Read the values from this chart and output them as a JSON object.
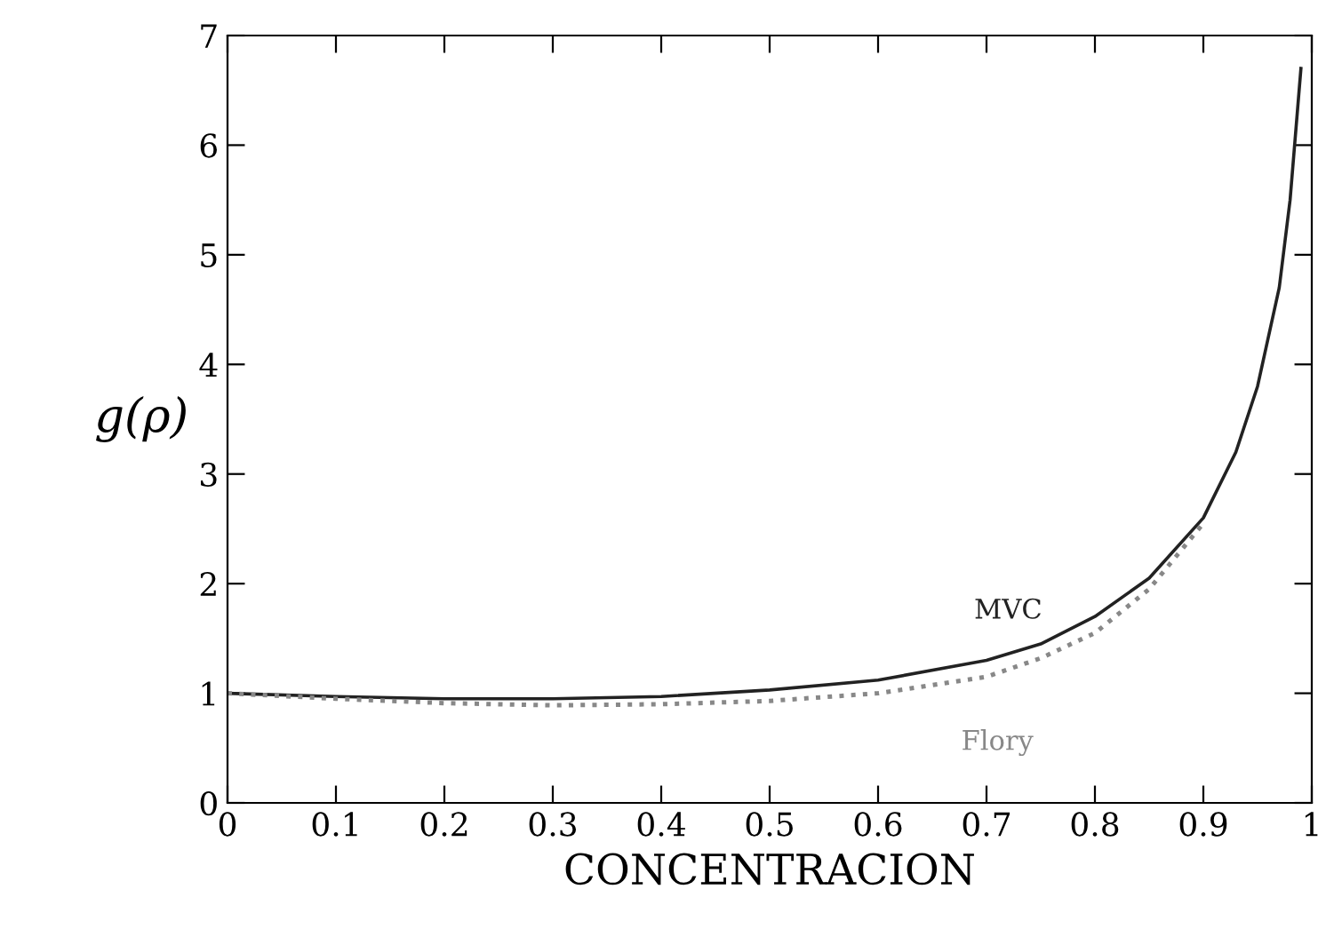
{
  "chart_data": {
    "type": "line",
    "xlabel": "CONCENTRACION",
    "ylabel": "g(ρ)",
    "xlim": [
      0,
      1
    ],
    "ylim": [
      0,
      7
    ],
    "xticks": [
      0,
      0.1,
      0.2,
      0.3,
      0.4,
      0.5,
      0.6,
      0.7,
      0.8,
      0.9,
      1
    ],
    "yticks": [
      0,
      1,
      2,
      3,
      4,
      5,
      6,
      7
    ],
    "grid": false,
    "legend": false,
    "marker": "none",
    "series": [
      {
        "name": "MVC",
        "color": "#222222",
        "line_style": "solid",
        "x": [
          0,
          0.1,
          0.2,
          0.3,
          0.4,
          0.5,
          0.6,
          0.7,
          0.75,
          0.8,
          0.85,
          0.9,
          0.93,
          0.95,
          0.97,
          0.98,
          0.99
        ],
        "values": [
          1.0,
          0.97,
          0.95,
          0.95,
          0.97,
          1.03,
          1.12,
          1.3,
          1.45,
          1.7,
          2.05,
          2.6,
          3.2,
          3.8,
          4.7,
          5.5,
          6.7
        ]
      },
      {
        "name": "Flory",
        "color": "#888888",
        "line_style": "dotted",
        "x": [
          0,
          0.1,
          0.2,
          0.3,
          0.4,
          0.5,
          0.6,
          0.7,
          0.75,
          0.8,
          0.85,
          0.9
        ],
        "values": [
          1.0,
          0.95,
          0.91,
          0.89,
          0.9,
          0.93,
          1.0,
          1.15,
          1.32,
          1.55,
          1.95,
          2.55
        ]
      }
    ]
  }
}
